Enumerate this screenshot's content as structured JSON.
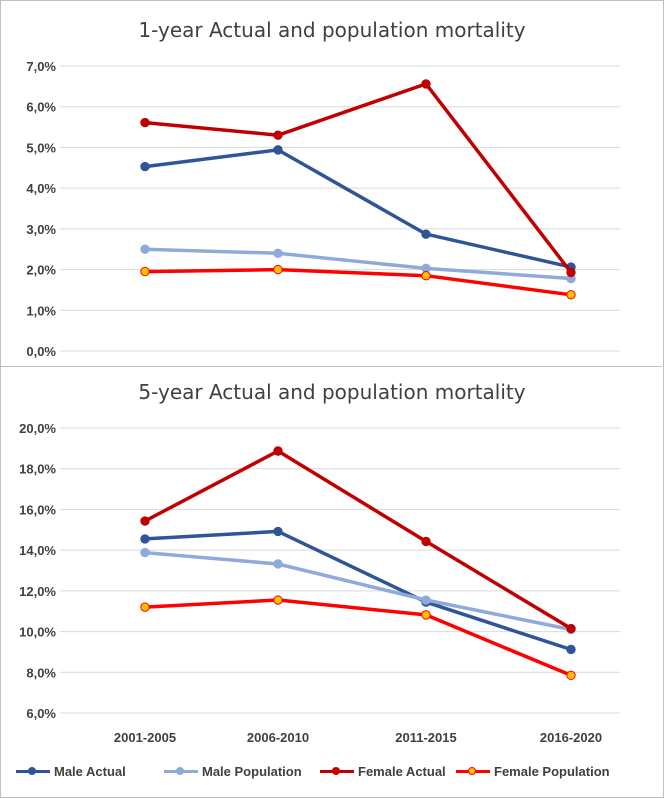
{
  "chart_data": [
    {
      "type": "line",
      "title": "1-year Actual and population mortality",
      "categories": [
        "2001-2005",
        "2006-2010",
        "2011-2015",
        "2016-2020"
      ],
      "y_ticks": [
        "0,0%",
        "1,0%",
        "2,0%",
        "3,0%",
        "4,0%",
        "5,0%",
        "6,0%",
        "7,0%"
      ],
      "ylim": [
        0,
        7
      ],
      "grid": true,
      "series": [
        {
          "name": "Male Actual",
          "values": [
            4.53,
            4.94,
            2.87,
            2.06
          ],
          "color": "#2f5597",
          "marker": "#2f5597"
        },
        {
          "name": "Male Population",
          "values": [
            2.5,
            2.4,
            2.03,
            1.78
          ],
          "color": "#8eaadb",
          "marker": "#8eaadb"
        },
        {
          "name": "Female Actual",
          "values": [
            5.61,
            5.3,
            6.56,
            1.93
          ],
          "color": "#c00000",
          "marker": "#c00000"
        },
        {
          "name": "Female Population",
          "values": [
            1.95,
            2.0,
            1.85,
            1.38
          ],
          "color": "#ff0000",
          "marker": "#ffc000"
        }
      ]
    },
    {
      "type": "line",
      "title": "5-year Actual and population mortality",
      "categories": [
        "2001-2005",
        "2006-2010",
        "2011-2015",
        "2016-2020"
      ],
      "y_ticks": [
        "6,0%",
        "8,0%",
        "10,0%",
        "12,0%",
        "14,0%",
        "16,0%",
        "18,0%",
        "20,0%"
      ],
      "ylim": [
        6,
        20
      ],
      "grid": true,
      "series": [
        {
          "name": "Male Actual",
          "values": [
            14.55,
            14.92,
            11.45,
            9.12
          ],
          "color": "#2f5597",
          "marker": "#2f5597"
        },
        {
          "name": "Male Population",
          "values": [
            13.88,
            13.32,
            11.55,
            10.1
          ],
          "color": "#8eaadb",
          "marker": "#8eaadb"
        },
        {
          "name": "Female Actual",
          "values": [
            15.43,
            18.87,
            14.43,
            10.15
          ],
          "color": "#c00000",
          "marker": "#c00000"
        },
        {
          "name": "Female Population",
          "values": [
            11.2,
            11.55,
            10.82,
            7.85
          ],
          "color": "#ff0000",
          "marker": "#ffc000"
        }
      ]
    }
  ],
  "legend": {
    "placement": "bottom",
    "items": [
      {
        "label": "Male Actual",
        "color": "#2f5597",
        "marker": "#2f5597"
      },
      {
        "label": "Male Population",
        "color": "#8eaadb",
        "marker": "#8eaadb"
      },
      {
        "label": "Female Actual",
        "color": "#c00000",
        "marker": "#c00000"
      },
      {
        "label": "Female Population",
        "color": "#ff0000",
        "marker": "#ffc000"
      }
    ]
  }
}
